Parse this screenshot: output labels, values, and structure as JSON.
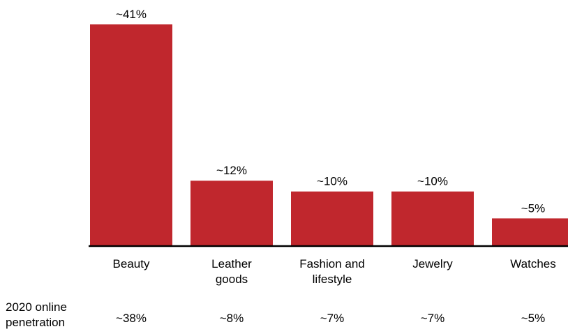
{
  "chart_data": {
    "type": "bar",
    "categories": [
      [
        "Beauty"
      ],
      [
        "Leather",
        "goods"
      ],
      [
        "Fashion and",
        "lifestyle"
      ],
      [
        "Jewelry"
      ],
      [
        "Watches"
      ]
    ],
    "values": [
      41,
      12,
      10,
      10,
      5
    ],
    "value_labels": [
      "~41%",
      "~12%",
      "~10%",
      "~10%",
      "~5%"
    ],
    "secondary_row": {
      "label_line1": "2020 online",
      "label_line2": "penetration",
      "values": [
        38,
        8,
        7,
        7,
        5
      ],
      "value_labels": [
        "~38%",
        "~8%",
        "~7%",
        "~7%",
        "~5%"
      ]
    },
    "ylim": [
      0,
      41
    ],
    "grid": false,
    "bar_color": "#c0272d",
    "axis_color": "#000000"
  }
}
